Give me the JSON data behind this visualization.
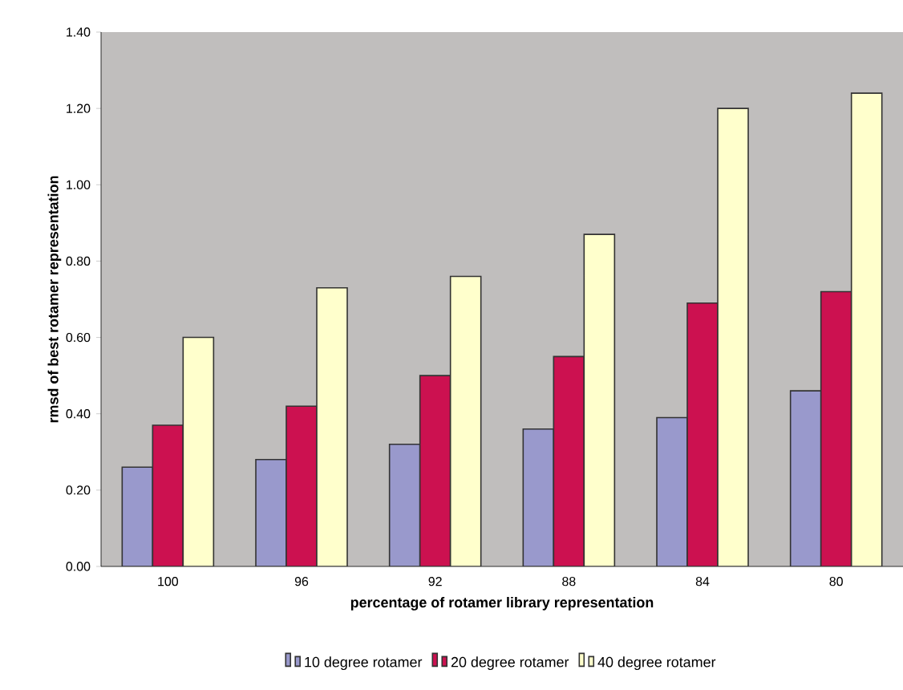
{
  "chart_data": {
    "type": "bar",
    "xlabel": "percentage of rotamer library representation",
    "ylabel": "rmsd of best rotamer representation",
    "categories": [
      "100",
      "96",
      "92",
      "88",
      "84",
      "80"
    ],
    "series": [
      {
        "name": "10 degree rotamer",
        "color": "#9999cc",
        "values": [
          0.26,
          0.28,
          0.32,
          0.36,
          0.39,
          0.46
        ]
      },
      {
        "name": "20 degree rotamer",
        "color": "#cc1150",
        "values": [
          0.37,
          0.42,
          0.5,
          0.55,
          0.69,
          0.72
        ]
      },
      {
        "name": "40 degree rotamer",
        "color": "#ffffcc",
        "values": [
          0.6,
          0.73,
          0.76,
          0.87,
          1.2,
          1.24
        ]
      }
    ],
    "ylim": [
      0,
      1.4
    ],
    "yticks": [
      {
        "value": 0,
        "label": "0.00"
      },
      {
        "value": 0.2,
        "label": "0.20"
      },
      {
        "value": 0.4,
        "label": "0.40"
      },
      {
        "value": 0.6,
        "label": "0.60"
      },
      {
        "value": 0.8,
        "label": "0.80"
      },
      {
        "value": 1.0,
        "label": "1.00"
      },
      {
        "value": 1.2,
        "label": "1.20"
      },
      {
        "value": 1.4,
        "label": "1.40"
      }
    ],
    "legend": "bottom",
    "grid": false
  }
}
